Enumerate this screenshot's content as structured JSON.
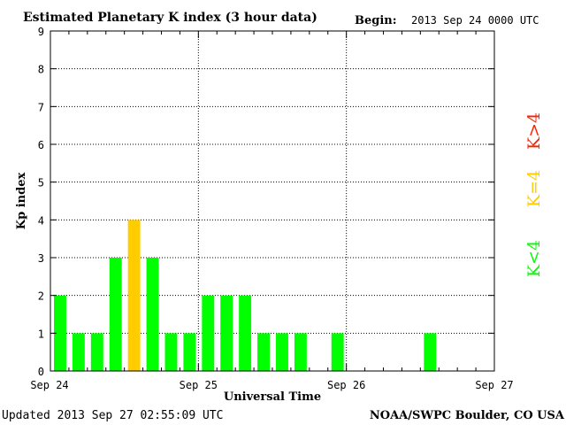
{
  "chart_data": {
    "type": "bar",
    "title": "Estimated Planetary K index (3 hour data)",
    "begin_label": "Begin:",
    "begin_value": "2013 Sep 24 0000 UTC",
    "xlabel": "Universal Time",
    "ylabel": "Kp index",
    "ylim": [
      0,
      9
    ],
    "yticks": [
      "0",
      "1",
      "2",
      "3",
      "4",
      "5",
      "6",
      "7",
      "8",
      "9"
    ],
    "xticks": [
      "Sep 24",
      "Sep 25",
      "Sep 26",
      "Sep 27"
    ],
    "grid": true,
    "bin_hours": 3,
    "values": [
      2,
      1,
      1,
      3,
      4,
      3,
      1,
      1,
      2,
      2,
      2,
      1,
      1,
      1,
      0,
      1,
      0,
      0,
      0,
      0,
      1,
      0,
      0,
      0
    ],
    "colors": {
      "below": "#00ff00",
      "equal": "#ffcc00",
      "above": "#ff2200"
    },
    "legend": [
      {
        "label": "K<4",
        "color": "#00ff00"
      },
      {
        "label": "K=4",
        "color": "#ffcc00"
      },
      {
        "label": "K>4",
        "color": "#ff2200"
      }
    ]
  },
  "footer": {
    "updated": "Updated 2013 Sep 27 02:55:09 UTC",
    "source": "NOAA/SWPC Boulder, CO USA"
  }
}
